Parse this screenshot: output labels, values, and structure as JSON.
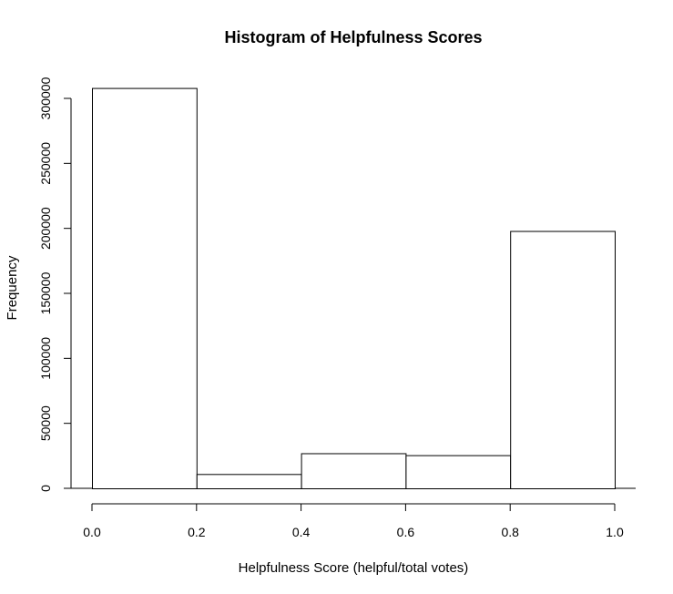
{
  "chart_data": {
    "type": "bar",
    "title": "Histogram of Helpfulness Scores",
    "xlabel": "Helpfulness Score (helpful/total votes)",
    "ylabel": "Frequency",
    "bins": [
      {
        "start": 0.0,
        "end": 0.2,
        "value": 308000
      },
      {
        "start": 0.2,
        "end": 0.4,
        "value": 11000
      },
      {
        "start": 0.4,
        "end": 0.6,
        "value": 27000
      },
      {
        "start": 0.6,
        "end": 0.8,
        "value": 25500
      },
      {
        "start": 0.8,
        "end": 1.0,
        "value": 198000
      }
    ],
    "xlim": [
      0,
      1
    ],
    "ylim": [
      0,
      300000
    ],
    "x_ticks": [
      "0.0",
      "0.2",
      "0.4",
      "0.6",
      "0.8",
      "1.0"
    ],
    "y_ticks": [
      "0",
      "50000",
      "100000",
      "150000",
      "200000",
      "250000",
      "300000"
    ],
    "grid": false,
    "bar_fill": "#ffffff",
    "bar_stroke": "#000000"
  }
}
